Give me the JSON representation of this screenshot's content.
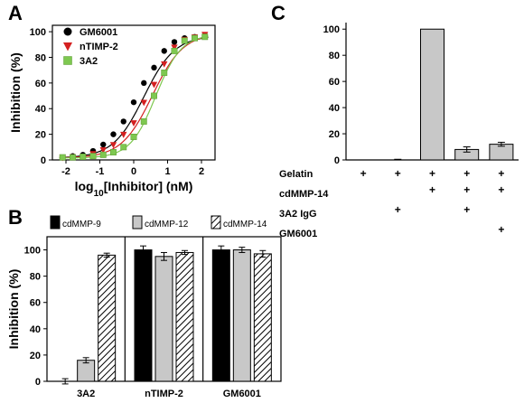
{
  "panels": {
    "a": {
      "letter": "A"
    },
    "b": {
      "letter": "B"
    },
    "c": {
      "letter": "C"
    }
  },
  "chart_data": [
    {
      "panel": "A",
      "type": "scatter",
      "xlabel_prefix": "log",
      "xlabel_sub": "10",
      "xlabel_suffix": "[Inhibitor] (nM)",
      "ylabel": "Inhibition (%)",
      "xlim": [
        -2.4,
        2.4
      ],
      "ylim": [
        0,
        105
      ],
      "xticks": [
        -2,
        -1,
        0,
        1,
        2
      ],
      "yticks": [
        0,
        20,
        40,
        60,
        80,
        100
      ],
      "legend_position": "top-left",
      "series": [
        {
          "name": "GM6001",
          "color": "#000000",
          "marker": "circle",
          "x": [
            -2.1,
            -1.8,
            -1.5,
            -1.2,
            -0.9,
            -0.6,
            -0.3,
            0.0,
            0.3,
            0.6,
            0.9,
            1.2,
            1.5,
            1.8,
            2.1
          ],
          "y": [
            2,
            3,
            4,
            7,
            12,
            20,
            30,
            45,
            60,
            72,
            85,
            92,
            95,
            96,
            97
          ],
          "error": [
            0.5,
            0.5,
            0.6,
            0.8,
            1,
            1.2,
            1.5,
            1.5,
            1.8,
            1.5,
            1.2,
            1,
            1,
            1,
            1
          ],
          "fit": {
            "top": 97,
            "bottom": 1.5,
            "log_ec50": 0.3,
            "hill": 0.95
          }
        },
        {
          "name": "nTIMP-2",
          "color": "#d42020",
          "marker": "triangle-down",
          "x": [
            -2.1,
            -1.8,
            -1.5,
            -1.2,
            -0.9,
            -0.6,
            -0.3,
            0.0,
            0.3,
            0.6,
            0.9,
            1.2,
            1.5,
            1.8,
            2.1
          ],
          "y": [
            2,
            2.5,
            3,
            5,
            8,
            12,
            20,
            29,
            45,
            59,
            75,
            88,
            94,
            96,
            98
          ],
          "error": [
            0.5,
            0.5,
            0.6,
            0.7,
            0.8,
            1,
            1.2,
            1.5,
            2,
            2,
            1.8,
            1.2,
            1,
            1,
            1
          ],
          "fit": {
            "top": 99,
            "bottom": 1.5,
            "log_ec50": 0.55,
            "hill": 0.95
          }
        },
        {
          "name": "3A2",
          "color": "#7ec850",
          "marker": "square",
          "x": [
            -2.1,
            -1.8,
            -1.5,
            -1.2,
            -0.9,
            -0.6,
            -0.3,
            0.0,
            0.3,
            0.6,
            0.9,
            1.2,
            1.5,
            1.8,
            2.1
          ],
          "y": [
            2,
            2,
            2.5,
            3,
            4,
            6,
            10,
            18,
            30,
            50,
            68,
            85,
            93,
            95,
            96
          ],
          "error": [
            0.5,
            0.5,
            0.5,
            0.6,
            0.7,
            0.8,
            1,
            1.5,
            2,
            2.5,
            2,
            1.5,
            1.2,
            1,
            1
          ],
          "fit": {
            "top": 98,
            "bottom": 1.5,
            "log_ec50": 0.65,
            "hill": 1.15
          }
        }
      ]
    },
    {
      "panel": "B",
      "type": "bar",
      "ylabel": "Inhibition (%)",
      "ylim": [
        0,
        110
      ],
      "yticks": [
        0,
        20,
        40,
        60,
        80,
        100
      ],
      "categories": [
        "3A2",
        "nTIMP-2",
        "GM6001"
      ],
      "legend_position": "top",
      "series": [
        {
          "name": "cdMMP-9",
          "fill": "#000000",
          "values": [
            0,
            100,
            100
          ],
          "errors": [
            2,
            3,
            3
          ]
        },
        {
          "name": "cdMMP-12",
          "fill": "#c8c8c8",
          "values": [
            16,
            95,
            100
          ],
          "errors": [
            2,
            3,
            2
          ]
        },
        {
          "name": "cdMMP-14",
          "fill": "hatch",
          "values": [
            96,
            98,
            97
          ],
          "errors": [
            1.5,
            1.5,
            2.5
          ]
        }
      ]
    },
    {
      "panel": "C",
      "type": "bar",
      "ylim": [
        0,
        105
      ],
      "yticks": [
        0,
        20,
        40,
        60,
        80,
        100
      ],
      "bar_color": "#c8c8c8",
      "values": [
        0,
        0,
        100,
        8,
        12
      ],
      "errors": [
        0,
        0.5,
        0,
        2,
        1.5
      ],
      "conditions": [
        {
          "label": "Gelatin",
          "marks": [
            "+",
            "+",
            "+",
            "+",
            "+"
          ]
        },
        {
          "label": "cdMMP-14",
          "marks": [
            "",
            "",
            "+",
            "+",
            "+"
          ]
        },
        {
          "label": "3A2 IgG",
          "marks": [
            "",
            "+",
            "",
            "+",
            ""
          ]
        },
        {
          "label": "GM6001",
          "marks": [
            "",
            "",
            "",
            "",
            "+"
          ]
        }
      ]
    }
  ]
}
